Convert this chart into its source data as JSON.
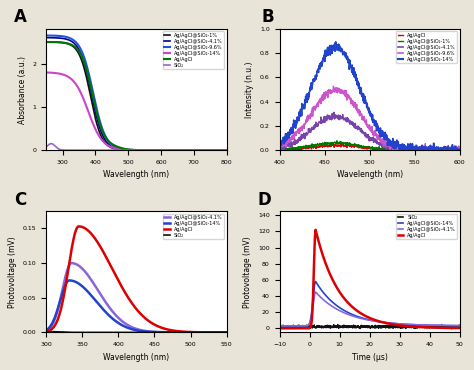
{
  "panel_A": {
    "label": "A",
    "xlabel": "Wavelength (nm)",
    "ylabel": "Absorbance (a.u.)",
    "xlim": [
      250,
      800
    ],
    "ylim": [
      0,
      2.8
    ],
    "xticks": [
      300,
      400,
      500,
      600,
      700,
      800
    ],
    "legend": [
      {
        "label": "Ag/AgCl@SiO₂-1%",
        "color": "#111111",
        "lw": 1.2
      },
      {
        "label": "Ag/AgCl@SiO₂-4.1%",
        "color": "#00008B",
        "lw": 1.2
      },
      {
        "label": "Ag/AgCl@SiO₂-9.6%",
        "color": "#2255DD",
        "lw": 1.5
      },
      {
        "label": "Ag/AgCl@SiO₂-14%",
        "color": "#CC44CC",
        "lw": 1.5
      },
      {
        "label": "Ag/AgCl",
        "color": "#007700",
        "lw": 1.5
      },
      {
        "label": "SiO₂",
        "color": "#9966CC",
        "lw": 1.2
      }
    ]
  },
  "panel_B": {
    "label": "B",
    "xlabel": "Wavelength (nm)",
    "ylabel": "Intensity (n.u.)",
    "xlim": [
      400,
      600
    ],
    "ylim": [
      0,
      1.0
    ],
    "xticks": [
      400,
      450,
      500,
      550,
      600
    ],
    "legend": [
      {
        "label": "Ag/AgCl",
        "color": "#DD0000",
        "lw": 1.0
      },
      {
        "label": "Ag/AgCl@SiO₂-1%",
        "color": "#007700",
        "lw": 1.0
      },
      {
        "label": "Ag/AgCl@SiO₂-4.1%",
        "color": "#7744AA",
        "lw": 1.2
      },
      {
        "label": "Ag/AgCl@SiO₂-9.6%",
        "color": "#CC55CC",
        "lw": 1.2
      },
      {
        "label": "Ag/AgCl@SiO₂-14%",
        "color": "#2244CC",
        "lw": 1.5
      }
    ]
  },
  "panel_C": {
    "label": "C",
    "xlabel": "Wavelength (nm)",
    "ylabel": "Photovoltage (mV)",
    "xlim": [
      300,
      550
    ],
    "ylim": [
      0,
      0.175
    ],
    "xticks": [
      300,
      350,
      400,
      450,
      500,
      550
    ],
    "yticks": [
      0.0,
      0.05,
      0.1,
      0.15
    ],
    "legend": [
      {
        "label": "Ag/AgCl@SiO₂-4.1%",
        "color": "#8866DD",
        "lw": 1.8
      },
      {
        "label": "Ag/AgCl@SiO₂-14%",
        "color": "#2244CC",
        "lw": 1.8
      },
      {
        "label": "Ag/AgCl",
        "color": "#DD0000",
        "lw": 1.8
      },
      {
        "label": "SiO₂",
        "color": "#111111",
        "lw": 1.2
      }
    ]
  },
  "panel_D": {
    "label": "D",
    "xlabel": "Time (μs)",
    "ylabel": "Photovoltage (mV)",
    "xlim": [
      -10,
      50
    ],
    "ylim": [
      -5,
      145
    ],
    "xticks": [
      -10,
      0,
      10,
      20,
      30,
      40,
      50
    ],
    "yticks": [
      0,
      20,
      40,
      60,
      80,
      100,
      120,
      140
    ],
    "legend": [
      {
        "label": "SiO₂",
        "color": "#111111",
        "lw": 1.2
      },
      {
        "label": "Ag/AgCl@SiO₂-14%",
        "color": "#2244CC",
        "lw": 1.2
      },
      {
        "label": "Ag/AgCl@SiO₂-4.1%",
        "color": "#8866DD",
        "lw": 1.2
      },
      {
        "label": "Ag/AgCl",
        "color": "#DD0000",
        "lw": 1.8
      }
    ]
  },
  "background": "#ffffff",
  "fig_background": "#e8e4d8"
}
